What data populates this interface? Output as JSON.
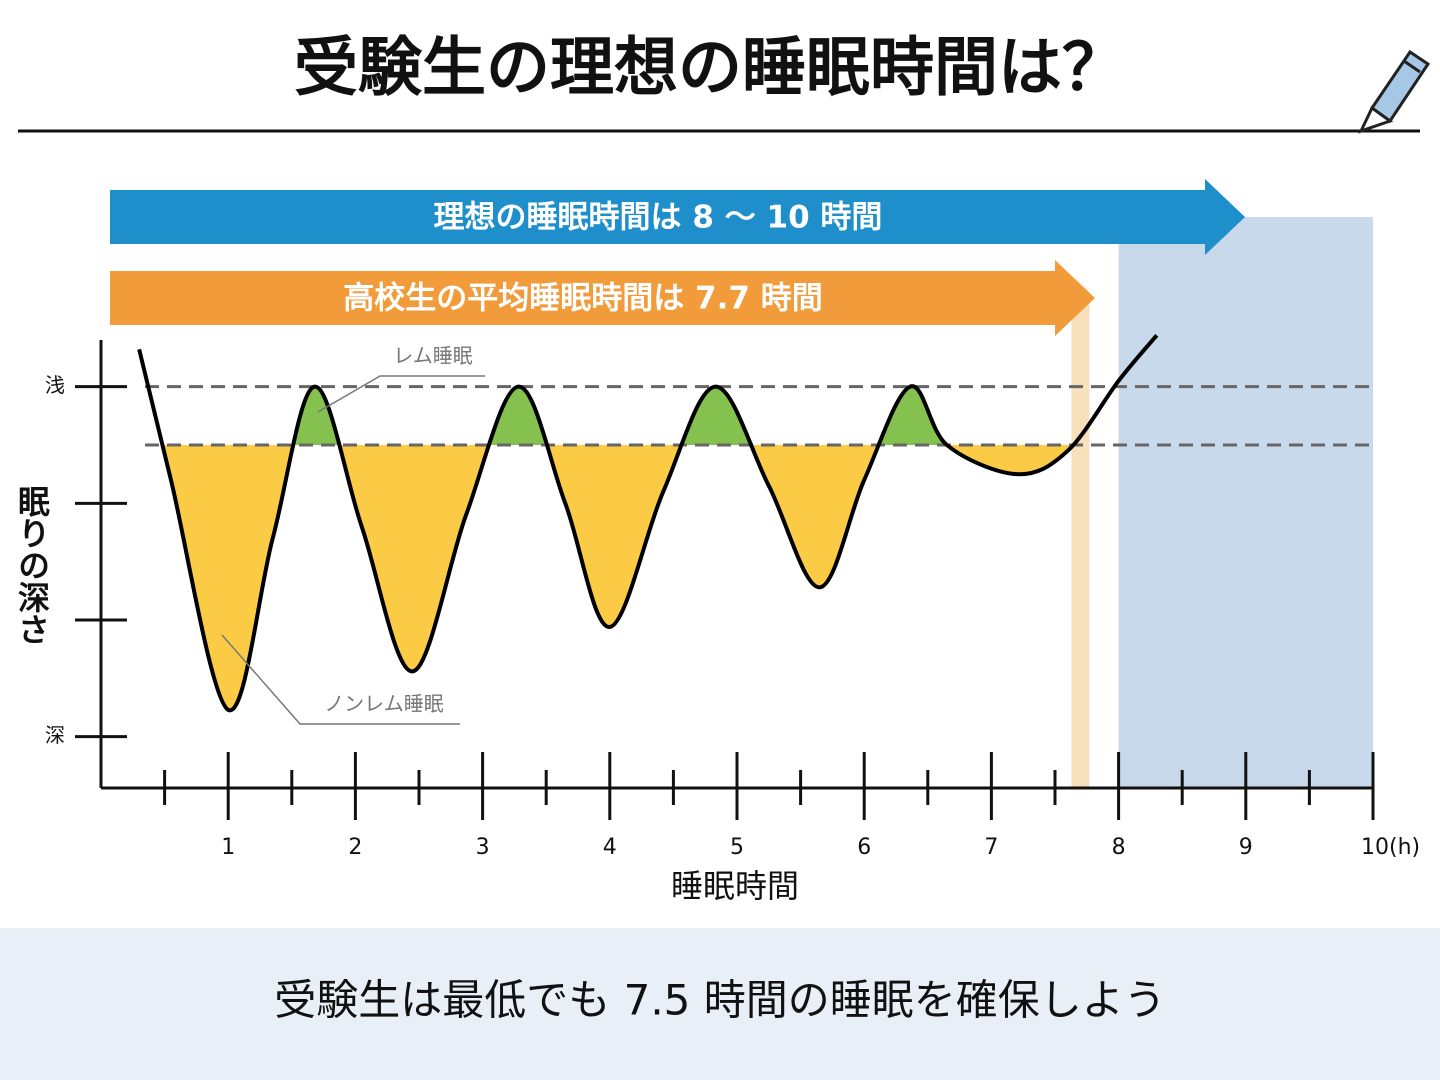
{
  "title": "受験生の理想の睡眠時間は？",
  "arrows": [
    {
      "text": "理想の睡眠時間は 8 〜 10 時間",
      "color": "#1e8fcb"
    },
    {
      "text": "高校生の平均睡眠時間は 7.7 時間",
      "color": "#f29b3b"
    }
  ],
  "chart_data": {
    "type": "line",
    "x_label": "睡眠時間",
    "y_label": "眠りの深さ",
    "xlim": [
      0,
      10
    ],
    "xticks": [
      1,
      2,
      3,
      4,
      5,
      6,
      7,
      8,
      9,
      {
        "value": 10,
        "label": "10(h)"
      }
    ],
    "xminorticks": [
      0.5,
      1.5,
      2.5,
      3.5,
      4.5,
      5.5,
      6.5,
      7.5,
      8.5,
      9.5
    ],
    "ylim": [
      -0.4,
      3.44
    ],
    "y_inverted": true,
    "yticks": [
      {
        "value": 0,
        "label": "浅"
      },
      {
        "value": 3,
        "label": "深"
      }
    ],
    "yminorticks": [
      1,
      2
    ],
    "series": [
      {
        "color": "#000000",
        "x": [
          0.3,
          0.55,
          1.0,
          1.35,
          1.68,
          2.05,
          2.45,
          2.87,
          3.28,
          3.65,
          4.0,
          4.42,
          4.83,
          5.25,
          5.65,
          6.0,
          6.36,
          6.65,
          7.2,
          7.6,
          8.0,
          8.3
        ],
        "values": [
          -0.32,
          0.8,
          2.77,
          1.3,
          0,
          1.2,
          2.44,
          1.1,
          0,
          1.0,
          2.06,
          0.9,
          0,
          0.85,
          1.72,
          0.8,
          0,
          0.5,
          0.75,
          0.55,
          -0.05,
          -0.44
        ]
      }
    ],
    "shallow_line": 0,
    "rem_threshold": 0.5,
    "rem_color": "#84c14f",
    "nrem_color": "#fccb45",
    "rem_label": "レム睡眠",
    "nrem_label": "ノンレム睡眠",
    "ideal_range": [
      8,
      10
    ],
    "ideal_band_color": "#c9d9ec",
    "average_hours": 7.7,
    "average_band_color": "#f8e0bd"
  },
  "footer": "受験生は最低でも 7.5 時間の睡眠を確保しよう"
}
